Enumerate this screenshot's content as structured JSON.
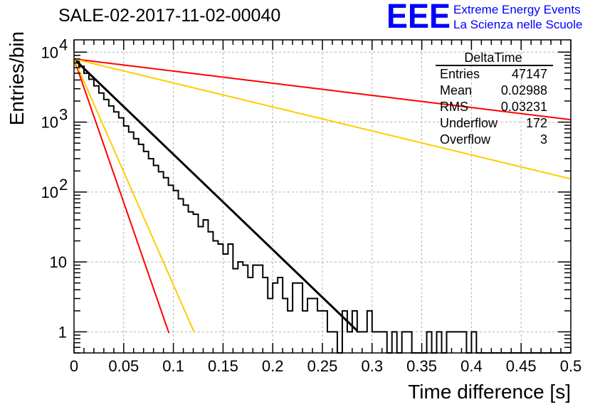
{
  "chart_data": {
    "type": "line",
    "title": "SALE-02-2017-11-02-00040",
    "xlabel": "Time difference [s]",
    "ylabel": "Entries/bin",
    "xlim": [
      0,
      0.5
    ],
    "ylim": [
      0.5,
      15000
    ],
    "ylog": true,
    "grid": true,
    "xticks": [
      "0",
      "0.05",
      "0.1",
      "0.15",
      "0.2",
      "0.25",
      "0.3",
      "0.35",
      "0.4",
      "0.45",
      "0.5"
    ],
    "yticks": [
      {
        "value": 1,
        "label": "1",
        "exp": ""
      },
      {
        "value": 10,
        "label": "10",
        "exp": ""
      },
      {
        "value": 100,
        "label": "10",
        "exp": "2"
      },
      {
        "value": 1000,
        "label": "10",
        "exp": "3"
      },
      {
        "value": 10000,
        "label": "10",
        "exp": "4"
      }
    ],
    "histogram": {
      "name": "DeltaTime",
      "bin_width": 0.005,
      "counts": [
        7600,
        6300,
        5000,
        4100,
        3300,
        2600,
        2100,
        1700,
        1400,
        1150,
        880,
        720,
        580,
        480,
        380,
        300,
        240,
        195,
        160,
        125,
        105,
        80,
        65,
        52,
        48,
        32,
        40,
        27,
        20,
        18,
        13,
        18,
        8,
        10,
        9,
        6,
        9,
        9,
        6,
        3,
        5,
        6,
        3,
        2,
        5,
        5,
        2,
        3,
        3,
        2,
        2,
        1,
        1,
        0,
        2,
        1,
        2,
        1,
        1,
        2,
        1,
        1,
        1,
        0,
        1,
        0,
        1,
        1,
        0,
        0,
        0,
        1,
        0,
        1,
        0,
        1,
        1,
        1,
        1,
        0,
        1,
        0,
        0,
        0,
        0,
        0,
        0,
        0,
        0,
        0,
        0,
        0,
        0,
        0,
        0,
        0,
        0,
        0,
        0,
        0
      ]
    },
    "series": [
      {
        "color": "#000000",
        "function": "exponential",
        "amplitude": 8000,
        "slope": -31.4,
        "x_range": [
          0,
          0.285
        ]
      },
      {
        "color": "#ff0000",
        "function": "exponential",
        "amplitude": 8000,
        "slope": -94.5,
        "x_range": [
          0,
          0.0955
        ]
      },
      {
        "color": "#ffcc00",
        "function": "exponential",
        "amplitude": 8000,
        "slope": -74.4,
        "x_range": [
          0,
          0.121
        ]
      },
      {
        "color": "#ff0000",
        "function": "exponential",
        "amplitude": 8000,
        "slope": -4.0,
        "x_range": [
          0,
          0.5
        ]
      },
      {
        "color": "#ffcc00",
        "function": "exponential",
        "amplitude": 8000,
        "slope": -7.9,
        "x_range": [
          0,
          0.5
        ]
      }
    ]
  },
  "stats": {
    "title": "DeltaTime",
    "rows": [
      {
        "label": "Entries",
        "value": "47147"
      },
      {
        "label": "Mean",
        "value": "0.02988"
      },
      {
        "label": "RMS",
        "value": "0.03231"
      },
      {
        "label": "Underflow",
        "value": "172"
      },
      {
        "label": "Overflow",
        "value": "3"
      }
    ]
  },
  "logo": {
    "text": "EEE",
    "line1": "Extreme Energy Events",
    "line2": "La Scienza nelle Scuole",
    "color": "#0000ff"
  }
}
